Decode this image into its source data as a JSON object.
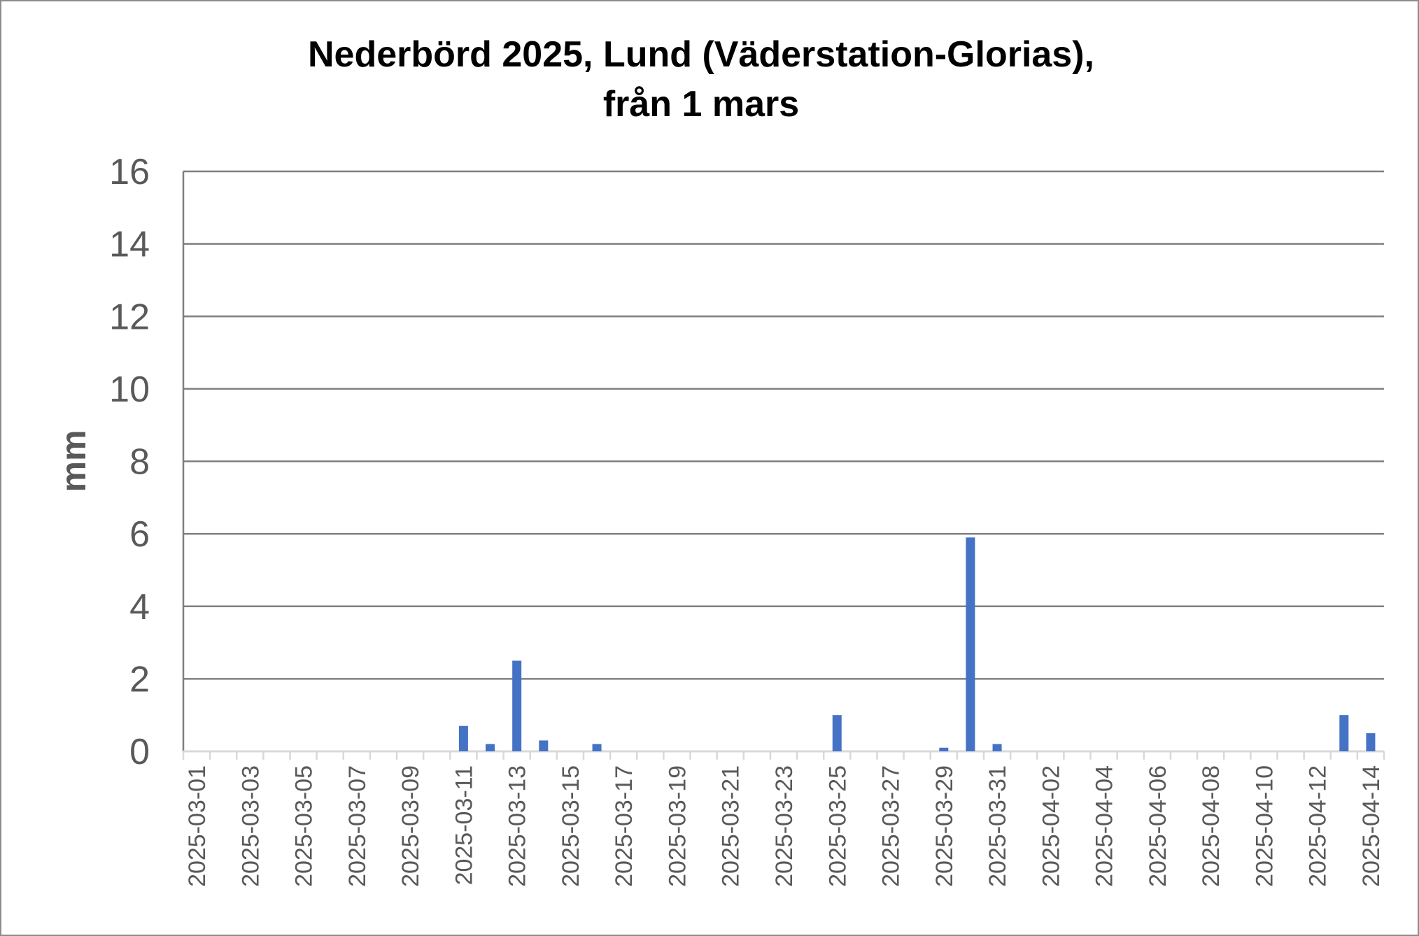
{
  "chart_data": {
    "type": "bar",
    "title_line1": "Nederbörd 2025, Lund (Väderstation-Glorias),",
    "title_line2": "från 1 mars",
    "xlabel": "",
    "ylabel": "mm",
    "ylim": [
      0,
      16
    ],
    "yticks": [
      0,
      2,
      4,
      6,
      8,
      10,
      12,
      14,
      16
    ],
    "grid": true,
    "bar_color": "#4472C4",
    "categories": [
      "2025-03-01",
      "2025-03-02",
      "2025-03-03",
      "2025-03-04",
      "2025-03-05",
      "2025-03-06",
      "2025-03-07",
      "2025-03-08",
      "2025-03-09",
      "2025-03-10",
      "2025-03-11",
      "2025-03-12",
      "2025-03-13",
      "2025-03-14",
      "2025-03-15",
      "2025-03-16",
      "2025-03-17",
      "2025-03-18",
      "2025-03-19",
      "2025-03-20",
      "2025-03-21",
      "2025-03-22",
      "2025-03-23",
      "2025-03-24",
      "2025-03-25",
      "2025-03-26",
      "2025-03-27",
      "2025-03-28",
      "2025-03-29",
      "2025-03-30",
      "2025-03-31",
      "2025-04-01",
      "2025-04-02",
      "2025-04-03",
      "2025-04-04",
      "2025-04-05",
      "2025-04-06",
      "2025-04-07",
      "2025-04-08",
      "2025-04-09",
      "2025-04-10",
      "2025-04-11",
      "2025-04-12",
      "2025-04-13",
      "2025-04-14"
    ],
    "values": [
      0,
      0,
      0,
      0,
      0,
      0,
      0,
      0,
      0,
      0,
      0.7,
      0.2,
      2.5,
      0.3,
      0,
      0.2,
      0,
      0,
      0,
      0,
      0,
      0,
      0,
      0,
      1.0,
      0,
      0,
      0,
      0.1,
      5.9,
      0.2,
      0,
      0,
      0,
      0,
      0,
      0,
      0,
      0,
      0,
      0,
      0,
      0,
      1.0,
      0.5
    ],
    "x_tick_labels": [
      "2025-03-01",
      "2025-03-03",
      "2025-03-05",
      "2025-03-07",
      "2025-03-09",
      "2025-03-11",
      "2025-03-13",
      "2025-03-15",
      "2025-03-17",
      "2025-03-19",
      "2025-03-21",
      "2025-03-23",
      "2025-03-25",
      "2025-03-27",
      "2025-03-29",
      "2025-03-31",
      "2025-04-02",
      "2025-04-04",
      "2025-04-06",
      "2025-04-08",
      "2025-04-10",
      "2025-04-12",
      "2025-04-14"
    ]
  }
}
